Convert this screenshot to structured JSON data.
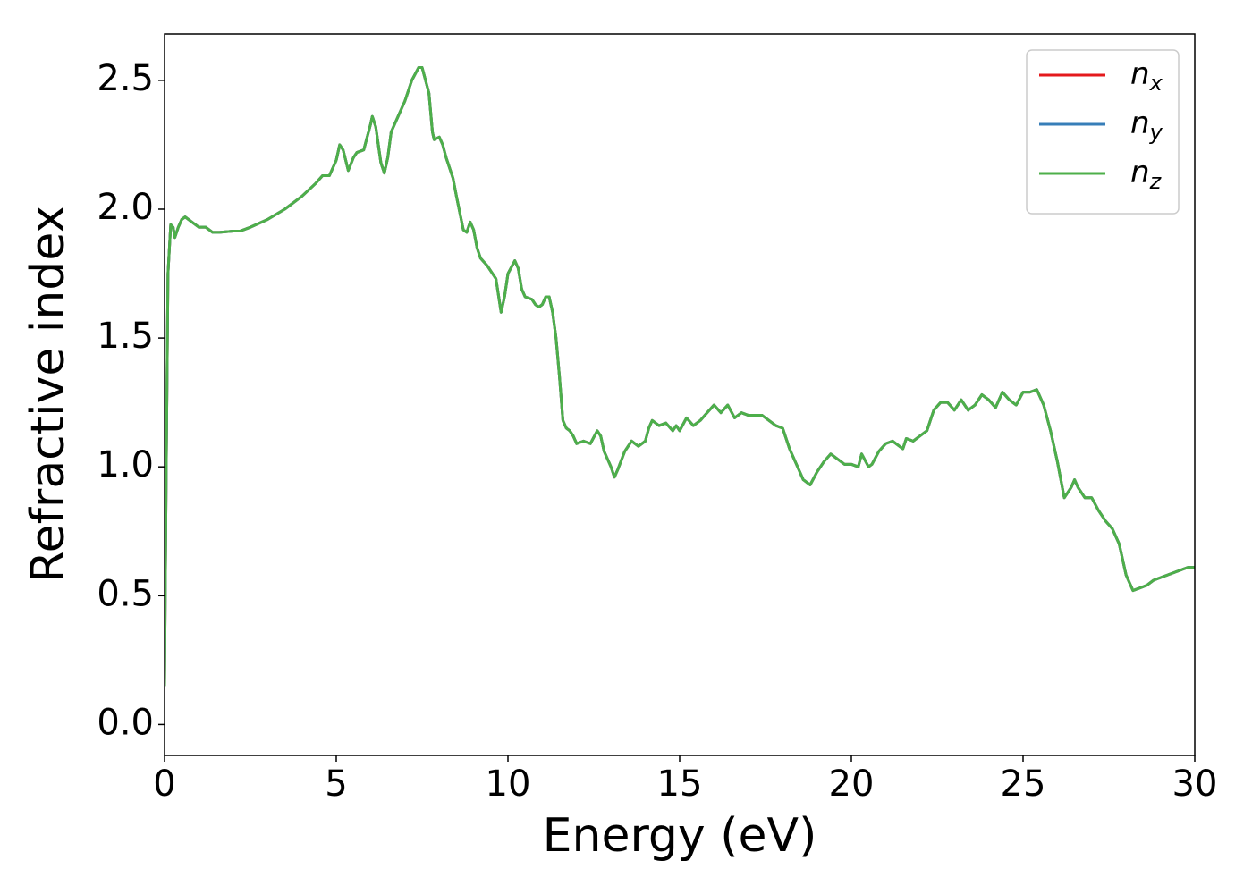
{
  "chart_data": {
    "type": "line",
    "xlabel": "Energy (eV)",
    "ylabel": "Refractive index",
    "x": [
      0,
      0.05,
      0.1,
      0.18,
      0.25,
      0.3,
      0.4,
      0.5,
      0.6,
      0.8,
      1.0,
      1.2,
      1.4,
      1.6,
      2.0,
      2.2,
      2.5,
      3.0,
      3.5,
      4.0,
      4.4,
      4.6,
      4.8,
      5.0,
      5.1,
      5.2,
      5.35,
      5.5,
      5.6,
      5.8,
      6.0,
      6.05,
      6.15,
      6.3,
      6.4,
      6.5,
      6.6,
      6.8,
      7.0,
      7.2,
      7.4,
      7.5,
      7.6,
      7.7,
      7.8,
      7.85,
      8.0,
      8.1,
      8.2,
      8.4,
      8.5,
      8.7,
      8.8,
      8.9,
      9.0,
      9.1,
      9.2,
      9.4,
      9.5,
      9.65,
      9.8,
      9.9,
      10.0,
      10.2,
      10.3,
      10.4,
      10.5,
      10.7,
      10.8,
      10.9,
      11.0,
      11.1,
      11.2,
      11.3,
      11.4,
      11.5,
      11.6,
      11.7,
      11.8,
      11.9,
      12.0,
      12.2,
      12.4,
      12.6,
      12.7,
      12.8,
      13.0,
      13.1,
      13.2,
      13.4,
      13.6,
      13.8,
      14.0,
      14.1,
      14.2,
      14.4,
      14.6,
      14.8,
      14.9,
      15.0,
      15.2,
      15.4,
      15.6,
      15.8,
      16.0,
      16.2,
      16.4,
      16.6,
      16.8,
      17.0,
      17.4,
      17.6,
      17.8,
      18.0,
      18.2,
      18.4,
      18.6,
      18.8,
      19.0,
      19.2,
      19.4,
      19.6,
      19.8,
      20.0,
      20.2,
      20.3,
      20.5,
      20.6,
      20.8,
      21.0,
      21.2,
      21.4,
      21.5,
      21.6,
      21.8,
      22.0,
      22.2,
      22.4,
      22.6,
      22.8,
      23.0,
      23.2,
      23.4,
      23.6,
      23.8,
      24.0,
      24.2,
      24.4,
      24.6,
      24.8,
      25.0,
      25.2,
      25.4,
      25.6,
      25.8,
      26.0,
      26.2,
      26.4,
      26.5,
      26.6,
      26.8,
      27.0,
      27.2,
      27.4,
      27.6,
      27.8,
      28.0,
      28.2,
      28.4,
      28.6,
      28.8,
      29.0,
      29.2,
      29.4,
      29.6,
      29.8,
      30.0
    ],
    "series": [
      {
        "name": "n_x",
        "color": "#e41a1c",
        "values": [
          0.15,
          1.0,
          1.75,
          1.94,
          1.93,
          1.89,
          1.93,
          1.96,
          1.97,
          1.95,
          1.93,
          1.93,
          1.91,
          1.91,
          1.915,
          1.915,
          1.93,
          1.96,
          2.0,
          2.05,
          2.1,
          2.13,
          2.13,
          2.19,
          2.25,
          2.23,
          2.15,
          2.2,
          2.22,
          2.23,
          2.33,
          2.36,
          2.32,
          2.18,
          2.14,
          2.2,
          2.3,
          2.36,
          2.42,
          2.5,
          2.55,
          2.55,
          2.5,
          2.45,
          2.3,
          2.27,
          2.28,
          2.25,
          2.2,
          2.12,
          2.05,
          1.92,
          1.91,
          1.95,
          1.92,
          1.85,
          1.81,
          1.78,
          1.76,
          1.73,
          1.6,
          1.66,
          1.75,
          1.8,
          1.77,
          1.69,
          1.66,
          1.65,
          1.63,
          1.62,
          1.63,
          1.66,
          1.66,
          1.6,
          1.5,
          1.35,
          1.18,
          1.15,
          1.14,
          1.12,
          1.09,
          1.1,
          1.09,
          1.14,
          1.12,
          1.06,
          1.0,
          0.96,
          0.99,
          1.06,
          1.1,
          1.08,
          1.1,
          1.15,
          1.18,
          1.16,
          1.17,
          1.14,
          1.16,
          1.14,
          1.19,
          1.16,
          1.18,
          1.21,
          1.24,
          1.21,
          1.24,
          1.19,
          1.21,
          1.2,
          1.2,
          1.18,
          1.16,
          1.15,
          1.07,
          1.01,
          0.95,
          0.93,
          0.98,
          1.02,
          1.05,
          1.03,
          1.01,
          1.01,
          1.0,
          1.05,
          1.0,
          1.01,
          1.06,
          1.09,
          1.1,
          1.08,
          1.07,
          1.11,
          1.1,
          1.12,
          1.14,
          1.22,
          1.25,
          1.25,
          1.22,
          1.26,
          1.22,
          1.24,
          1.28,
          1.26,
          1.23,
          1.29,
          1.26,
          1.24,
          1.29,
          1.29,
          1.3,
          1.24,
          1.14,
          1.02,
          0.88,
          0.92,
          0.95,
          0.92,
          0.88,
          0.88,
          0.83,
          0.79,
          0.76,
          0.7,
          0.58,
          0.52,
          0.53,
          0.54,
          0.56,
          0.57,
          0.58,
          0.59,
          0.6,
          0.61,
          0.61
        ]
      },
      {
        "name": "n_y",
        "color": "#377eb8",
        "values": [
          0.15,
          1.0,
          1.75,
          1.94,
          1.93,
          1.89,
          1.93,
          1.96,
          1.97,
          1.95,
          1.93,
          1.93,
          1.91,
          1.91,
          1.915,
          1.915,
          1.93,
          1.96,
          2.0,
          2.05,
          2.1,
          2.13,
          2.13,
          2.19,
          2.25,
          2.23,
          2.15,
          2.2,
          2.22,
          2.23,
          2.33,
          2.36,
          2.32,
          2.18,
          2.14,
          2.2,
          2.3,
          2.36,
          2.42,
          2.5,
          2.55,
          2.55,
          2.5,
          2.45,
          2.3,
          2.27,
          2.28,
          2.25,
          2.2,
          2.12,
          2.05,
          1.92,
          1.91,
          1.95,
          1.92,
          1.85,
          1.81,
          1.78,
          1.76,
          1.73,
          1.6,
          1.66,
          1.75,
          1.8,
          1.77,
          1.69,
          1.66,
          1.65,
          1.63,
          1.62,
          1.63,
          1.66,
          1.66,
          1.6,
          1.5,
          1.35,
          1.18,
          1.15,
          1.14,
          1.12,
          1.09,
          1.1,
          1.09,
          1.14,
          1.12,
          1.06,
          1.0,
          0.96,
          0.99,
          1.06,
          1.1,
          1.08,
          1.1,
          1.15,
          1.18,
          1.16,
          1.17,
          1.14,
          1.16,
          1.14,
          1.19,
          1.16,
          1.18,
          1.21,
          1.24,
          1.21,
          1.24,
          1.19,
          1.21,
          1.2,
          1.2,
          1.18,
          1.16,
          1.15,
          1.07,
          1.01,
          0.95,
          0.93,
          0.98,
          1.02,
          1.05,
          1.03,
          1.01,
          1.01,
          1.0,
          1.05,
          1.0,
          1.01,
          1.06,
          1.09,
          1.1,
          1.08,
          1.07,
          1.11,
          1.1,
          1.12,
          1.14,
          1.22,
          1.25,
          1.25,
          1.22,
          1.26,
          1.22,
          1.24,
          1.28,
          1.26,
          1.23,
          1.29,
          1.26,
          1.24,
          1.29,
          1.29,
          1.3,
          1.24,
          1.14,
          1.02,
          0.88,
          0.92,
          0.95,
          0.92,
          0.88,
          0.88,
          0.83,
          0.79,
          0.76,
          0.7,
          0.58,
          0.52,
          0.53,
          0.54,
          0.56,
          0.57,
          0.58,
          0.59,
          0.6,
          0.61,
          0.61
        ]
      },
      {
        "name": "n_z",
        "color": "#4daf4a",
        "values": [
          0.15,
          1.0,
          1.75,
          1.94,
          1.93,
          1.89,
          1.93,
          1.96,
          1.97,
          1.95,
          1.93,
          1.93,
          1.91,
          1.91,
          1.915,
          1.915,
          1.93,
          1.96,
          2.0,
          2.05,
          2.1,
          2.13,
          2.13,
          2.19,
          2.25,
          2.23,
          2.15,
          2.2,
          2.22,
          2.23,
          2.33,
          2.36,
          2.32,
          2.18,
          2.14,
          2.2,
          2.3,
          2.36,
          2.42,
          2.5,
          2.55,
          2.55,
          2.5,
          2.45,
          2.3,
          2.27,
          2.28,
          2.25,
          2.2,
          2.12,
          2.05,
          1.92,
          1.91,
          1.95,
          1.92,
          1.85,
          1.81,
          1.78,
          1.76,
          1.73,
          1.6,
          1.66,
          1.75,
          1.8,
          1.77,
          1.69,
          1.66,
          1.65,
          1.63,
          1.62,
          1.63,
          1.66,
          1.66,
          1.6,
          1.5,
          1.35,
          1.18,
          1.15,
          1.14,
          1.12,
          1.09,
          1.1,
          1.09,
          1.14,
          1.12,
          1.06,
          1.0,
          0.96,
          0.99,
          1.06,
          1.1,
          1.08,
          1.1,
          1.15,
          1.18,
          1.16,
          1.17,
          1.14,
          1.16,
          1.14,
          1.19,
          1.16,
          1.18,
          1.21,
          1.24,
          1.21,
          1.24,
          1.19,
          1.21,
          1.2,
          1.2,
          1.18,
          1.16,
          1.15,
          1.07,
          1.01,
          0.95,
          0.93,
          0.98,
          1.02,
          1.05,
          1.03,
          1.01,
          1.01,
          1.0,
          1.05,
          1.0,
          1.01,
          1.06,
          1.09,
          1.1,
          1.08,
          1.07,
          1.11,
          1.1,
          1.12,
          1.14,
          1.22,
          1.25,
          1.25,
          1.22,
          1.26,
          1.22,
          1.24,
          1.28,
          1.26,
          1.23,
          1.29,
          1.26,
          1.24,
          1.29,
          1.29,
          1.3,
          1.24,
          1.14,
          1.02,
          0.88,
          0.92,
          0.95,
          0.92,
          0.88,
          0.88,
          0.83,
          0.79,
          0.76,
          0.7,
          0.58,
          0.52,
          0.53,
          0.54,
          0.56,
          0.57,
          0.58,
          0.59,
          0.6,
          0.61,
          0.61
        ]
      }
    ],
    "xlim": [
      0,
      30
    ],
    "xticks": [
      0,
      5,
      10,
      15,
      20,
      25,
      30
    ],
    "ylim": [
      -0.12,
      2.68
    ],
    "yticks": [
      {
        "value": 0,
        "label": "0.0"
      },
      0.5,
      {
        "value": 1,
        "label": "1.0"
      },
      1.5,
      {
        "value": 2,
        "label": "2.0"
      },
      2.5
    ],
    "legend": "upper right"
  }
}
